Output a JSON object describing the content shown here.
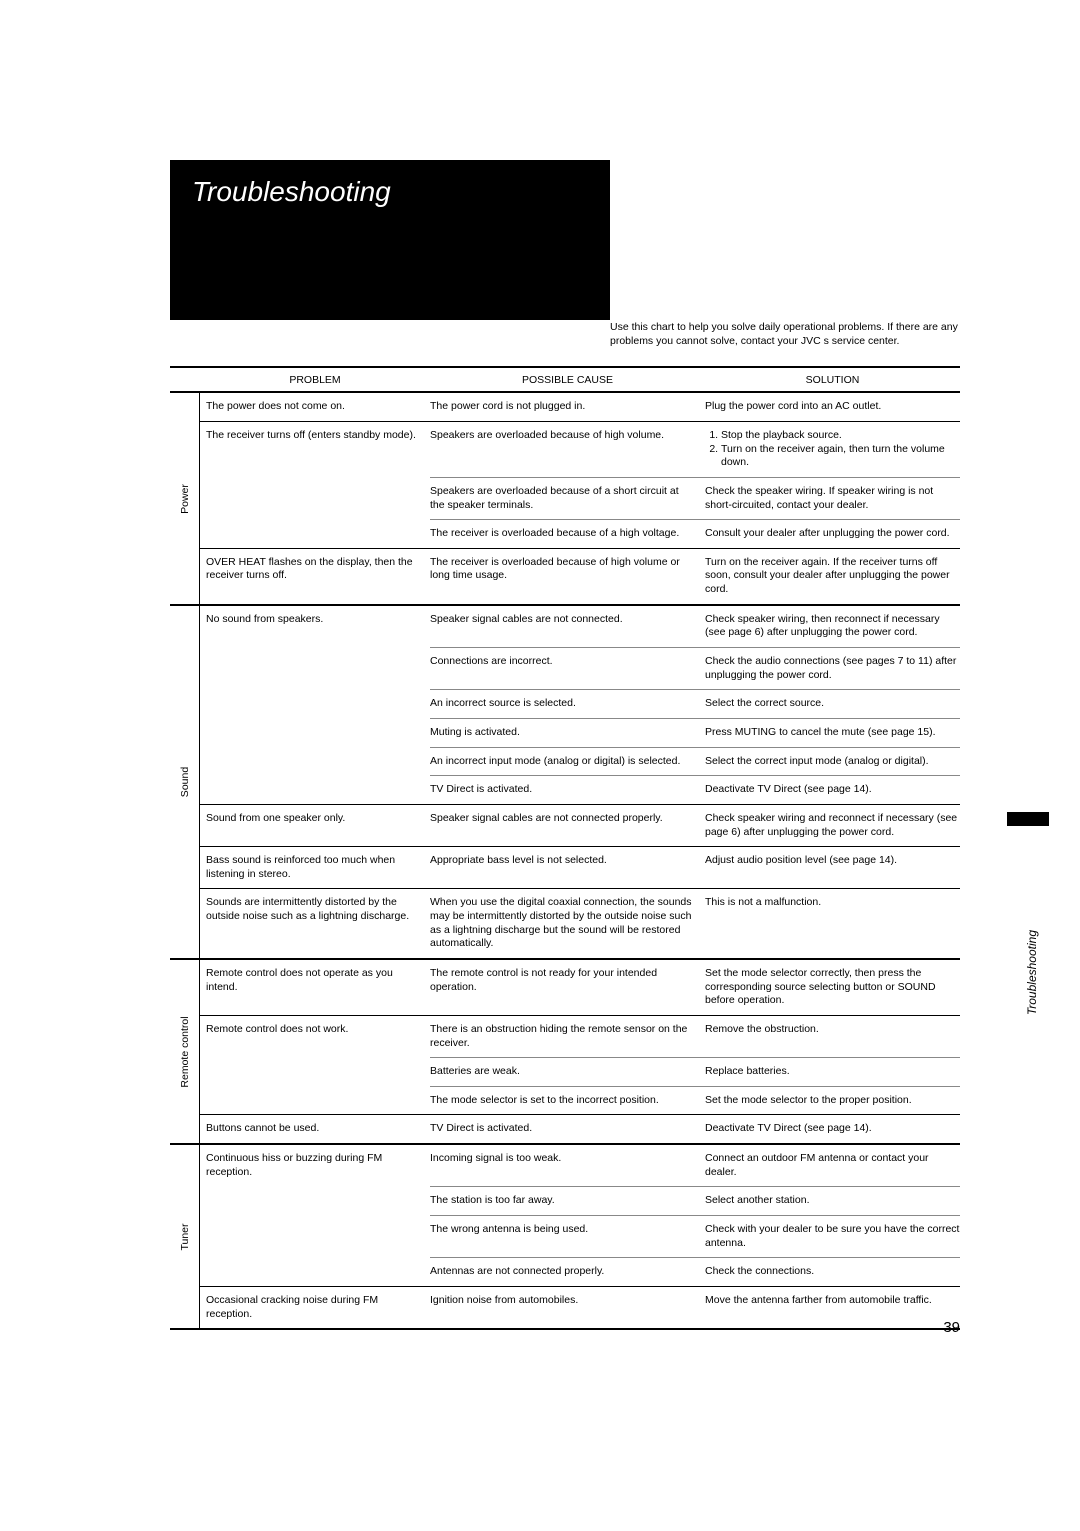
{
  "page": {
    "title": "Troubleshooting",
    "intro": "Use this chart to help you solve daily operational problems. If there are any problems you cannot solve, contact your JVC s service center.",
    "sideLabel": "Troubleshooting",
    "pageNumber": "39"
  },
  "headers": {
    "problem": "PROBLEM",
    "cause": "POSSIBLE CAUSE",
    "solution": "SOLUTION"
  },
  "sections": [
    {
      "label": "Power",
      "rows": [
        {
          "problem": "The power does not come on.",
          "causes": [
            {
              "cause": "The power cord is not plugged in.",
              "solution": "Plug the power cord into an AC outlet."
            }
          ]
        },
        {
          "problem": "The receiver turns off (enters standby mode).",
          "causes": [
            {
              "cause": "Speakers are overloaded because of high volume.",
              "solution_list": [
                "Stop the playback source.",
                "Turn on the receiver again, then turn the volume down."
              ]
            },
            {
              "cause": "Speakers are overloaded because of a short circuit at the speaker terminals.",
              "solution": "Check the speaker wiring. If speaker wiring is not short-circuited, contact your dealer."
            },
            {
              "cause": "The receiver is overloaded because of a high voltage.",
              "solution": "Consult your dealer after unplugging the power cord."
            }
          ]
        },
        {
          "problem": " OVER HEAT  flashes on the display, then the receiver turns off.",
          "causes": [
            {
              "cause": "The receiver is overloaded because of high volume or long time usage.",
              "solution": "Turn on the receiver again. If the receiver turns off soon, consult your dealer after unplugging the power cord."
            }
          ]
        }
      ]
    },
    {
      "label": "Sound",
      "rows": [
        {
          "problem": "No sound from speakers.",
          "causes": [
            {
              "cause": "Speaker signal cables are not connected.",
              "solution": "Check speaker wiring, then reconnect if necessary (see page 6) after unplugging the power cord."
            },
            {
              "cause": "Connections are incorrect.",
              "solution": "Check the audio connections (see pages 7 to 11) after unplugging the power cord."
            },
            {
              "cause": "An incorrect source is selected.",
              "solution": "Select the correct source."
            },
            {
              "cause": "Muting is activated.",
              "solution": "Press MUTING to cancel the mute (see page 15)."
            },
            {
              "cause": "An incorrect input mode (analog or digital) is selected.",
              "solution": "Select the correct input mode (analog or digital)."
            },
            {
              "cause": "TV Direct is activated.",
              "solution": "Deactivate TV Direct (see page 14)."
            }
          ]
        },
        {
          "problem": "Sound from one speaker only.",
          "causes": [
            {
              "cause": "Speaker signal cables are not connected properly.",
              "solution": "Check speaker wiring and reconnect if necessary (see page 6) after unplugging the power cord."
            }
          ]
        },
        {
          "problem": "Bass sound is reinforced too much when listening in stereo.",
          "causes": [
            {
              "cause": "Appropriate bass level is not selected.",
              "solution": "Adjust audio position level (see page 14)."
            }
          ]
        },
        {
          "problem": "Sounds are intermittently distorted by the outside noise such as a lightning discharge.",
          "causes": [
            {
              "cause": "When you use the digital coaxial connection, the sounds may be intermittently distorted by the outside noise such as a lightning discharge but the sound will be restored automatically.",
              "solution": "This is not a malfunction."
            }
          ]
        }
      ]
    },
    {
      "label": "Remote control",
      "rows": [
        {
          "problem": "Remote control does not operate as you intend.",
          "causes": [
            {
              "cause": "The remote control is not ready for your intended operation.",
              "solution": "Set the mode selector correctly, then press the corresponding source selecting button or SOUND before operation."
            }
          ]
        },
        {
          "problem": "Remote control does not work.",
          "causes": [
            {
              "cause": "There is an obstruction hiding the remote sensor on the receiver.",
              "solution": "Remove the obstruction."
            },
            {
              "cause": "Batteries are weak.",
              "solution": "Replace batteries."
            },
            {
              "cause": "The mode selector is set to the incorrect position.",
              "solution": "Set the mode selector to the proper position."
            }
          ]
        },
        {
          "problem": "Buttons cannot be used.",
          "causes": [
            {
              "cause": "TV Direct is activated.",
              "solution": "Deactivate TV Direct (see page 14)."
            }
          ]
        }
      ]
    },
    {
      "label": "Tuner",
      "rows": [
        {
          "problem": "Continuous hiss or buzzing during FM reception.",
          "causes": [
            {
              "cause": "Incoming signal is too weak.",
              "solution": "Connect an outdoor FM antenna or contact your dealer."
            },
            {
              "cause": "The station is too far away.",
              "solution": "Select another station."
            },
            {
              "cause": "The wrong antenna is being used.",
              "solution": "Check with your dealer to be sure you have the correct antenna."
            },
            {
              "cause": "Antennas are not connected properly.",
              "solution": "Check the connections."
            }
          ]
        },
        {
          "problem": "Occasional cracking noise during FM reception.",
          "causes": [
            {
              "cause": "Ignition noise from automobiles.",
              "solution": "Move the antenna farther from automobile traffic."
            }
          ]
        }
      ]
    }
  ]
}
